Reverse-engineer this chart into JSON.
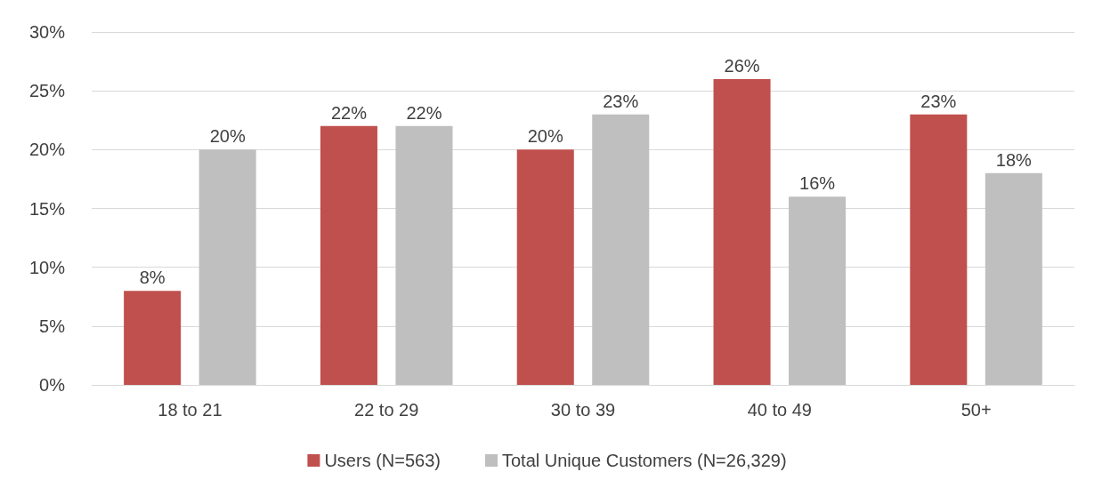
{
  "chart_data": {
    "type": "bar",
    "categories": [
      "18 to 21",
      "22 to 29",
      "30 to 39",
      "40 to 49",
      "50+"
    ],
    "series": [
      {
        "name": "Users (N=563)",
        "color": "#c0504d",
        "values": [
          8,
          22,
          20,
          26,
          23
        ],
        "value_labels": [
          "8%",
          "22%",
          "20%",
          "26%",
          "23%"
        ]
      },
      {
        "name": "Total Unique Customers (N=26,329)",
        "color": "#bfbfbf",
        "values": [
          20,
          22,
          23,
          16,
          18
        ],
        "value_labels": [
          "20%",
          "22%",
          "23%",
          "16%",
          "18%"
        ]
      }
    ],
    "ylim": [
      0,
      30
    ],
    "yticks": [
      {
        "value": 0,
        "label": "0%"
      },
      {
        "value": 5,
        "label": "5%"
      },
      {
        "value": 10,
        "label": "10%"
      },
      {
        "value": 15,
        "label": "15%"
      },
      {
        "value": 20,
        "label": "20%"
      },
      {
        "value": 25,
        "label": "25%"
      },
      {
        "value": 30,
        "label": "30%"
      }
    ],
    "grid": "y",
    "legend": "bottom"
  }
}
